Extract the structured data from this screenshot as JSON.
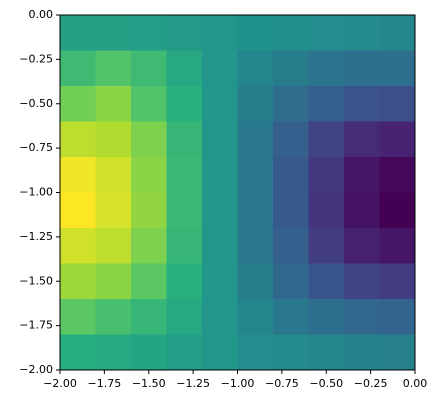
{
  "chart_data": {
    "type": "heatmap",
    "xlim": [
      -2,
      0
    ],
    "ylim": [
      -2,
      0
    ],
    "xticks": [
      {
        "value": -2,
        "label": "−2.00"
      },
      {
        "value": -1.75,
        "label": "−1.75"
      },
      {
        "value": -1.5,
        "label": "−1.50"
      },
      {
        "value": -1.25,
        "label": "−1.25"
      },
      {
        "value": -1,
        "label": "−1.00"
      },
      {
        "value": -0.75,
        "label": "−0.75"
      },
      {
        "value": -0.5,
        "label": "−0.50"
      },
      {
        "value": -0.25,
        "label": "−0.25"
      },
      {
        "value": 0,
        "label": "0.00"
      }
    ],
    "yticks": [
      {
        "value": 0,
        "label": "0.00"
      },
      {
        "value": -0.25,
        "label": "−0.25"
      },
      {
        "value": -0.5,
        "label": "−0.50"
      },
      {
        "value": -0.75,
        "label": "−0.75"
      },
      {
        "value": -1,
        "label": "−1.00"
      },
      {
        "value": -1.25,
        "label": "−1.25"
      },
      {
        "value": -1.5,
        "label": "−1.50"
      },
      {
        "value": -1.75,
        "label": "−1.75"
      },
      {
        "value": -2,
        "label": "−2.00"
      }
    ],
    "colormap": [
      "#440154",
      "#472d7b",
      "#3b528b",
      "#2c728e",
      "#21918c",
      "#28ae80",
      "#5ec962",
      "#addc30",
      "#fde725"
    ],
    "z": [
      [
        0.56,
        0.56,
        0.55,
        0.54,
        0.52,
        0.5,
        0.49,
        0.48,
        0.47,
        0.46
      ],
      [
        0.68,
        0.72,
        0.68,
        0.6,
        0.52,
        0.45,
        0.42,
        0.38,
        0.36,
        0.36
      ],
      [
        0.78,
        0.82,
        0.72,
        0.63,
        0.52,
        0.42,
        0.35,
        0.3,
        0.25,
        0.24
      ],
      [
        0.9,
        0.88,
        0.8,
        0.66,
        0.52,
        0.4,
        0.3,
        0.2,
        0.12,
        0.1
      ],
      [
        0.98,
        0.93,
        0.82,
        0.67,
        0.52,
        0.4,
        0.28,
        0.16,
        0.06,
        0.02
      ],
      [
        1.0,
        0.94,
        0.83,
        0.67,
        0.52,
        0.4,
        0.28,
        0.15,
        0.05,
        0.0
      ],
      [
        0.93,
        0.9,
        0.8,
        0.66,
        0.52,
        0.4,
        0.3,
        0.18,
        0.09,
        0.06
      ],
      [
        0.85,
        0.82,
        0.74,
        0.63,
        0.52,
        0.42,
        0.34,
        0.26,
        0.2,
        0.18
      ],
      [
        0.74,
        0.7,
        0.66,
        0.6,
        0.52,
        0.45,
        0.4,
        0.36,
        0.33,
        0.32
      ],
      [
        0.62,
        0.6,
        0.58,
        0.55,
        0.52,
        0.48,
        0.47,
        0.45,
        0.44,
        0.43
      ]
    ]
  }
}
